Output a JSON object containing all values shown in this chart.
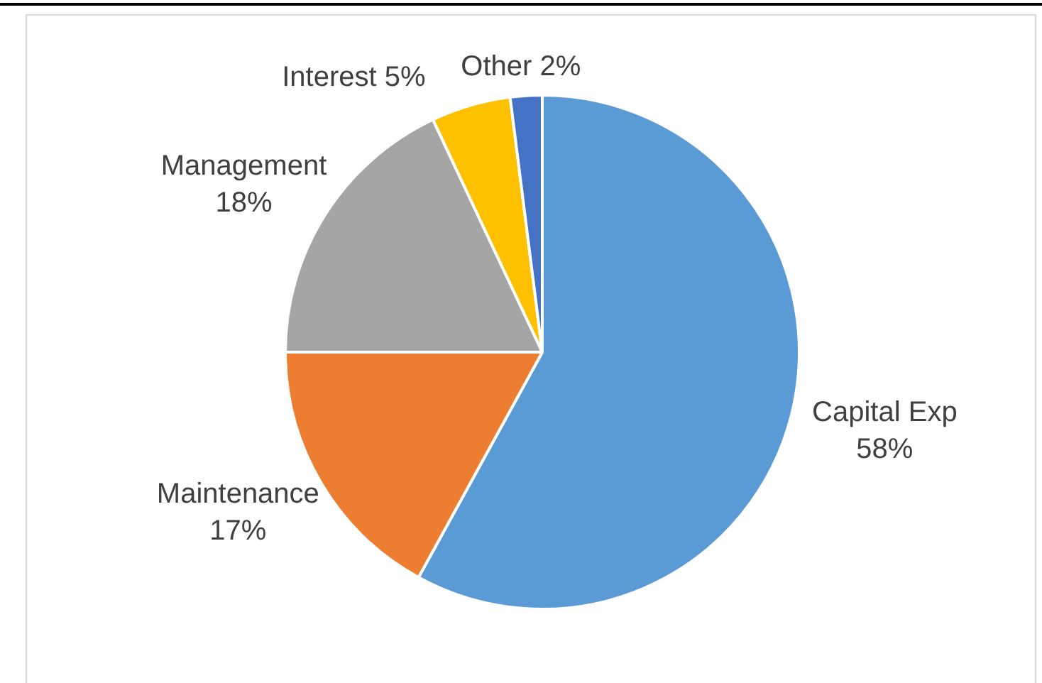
{
  "chart_data": {
    "type": "pie",
    "categories": [
      "Capital Exp",
      "Maintenance",
      "Management",
      "Interest",
      "Other"
    ],
    "values": [
      58,
      17,
      18,
      5,
      2
    ],
    "colors": [
      "#5b9bd5",
      "#ed7d31",
      "#a5a5a5",
      "#ffc000",
      "#4472c4"
    ],
    "value_labels": [
      "58%",
      "17%",
      "18%",
      "5%",
      "2%"
    ],
    "legend": false
  }
}
